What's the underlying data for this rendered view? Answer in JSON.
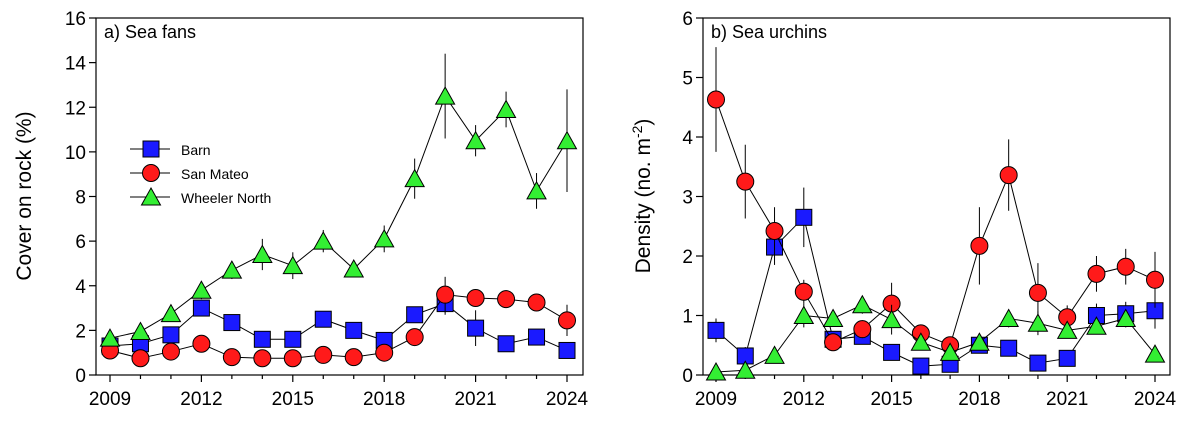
{
  "chart_data": [
    {
      "type": "line",
      "title": "a) Sea fans",
      "xlabel": "",
      "ylabel": "Cover on rock (%)",
      "xlim": [
        2009,
        2024
      ],
      "ylim": [
        0,
        16
      ],
      "xticks": [
        2009,
        2012,
        2015,
        2018,
        2021,
        2024
      ],
      "yticks": [
        0,
        2,
        4,
        6,
        8,
        10,
        12,
        14,
        16
      ],
      "grid": false,
      "legend": "upper-left",
      "x": [
        2009,
        2010,
        2011,
        2012,
        2013,
        2014,
        2015,
        2016,
        2017,
        2018,
        2019,
        2020,
        2021,
        2022,
        2023,
        2024
      ],
      "series": [
        {
          "name": "Barn",
          "marker": "square",
          "color": "#1a1aff",
          "values": [
            1.3,
            1.4,
            1.8,
            3.0,
            2.35,
            1.6,
            1.6,
            2.5,
            2.0,
            1.55,
            2.7,
            3.2,
            2.1,
            1.4,
            1.7,
            1.1
          ],
          "errors": [
            0.2,
            0.2,
            0.3,
            0.35,
            0.3,
            0.2,
            0.2,
            0.3,
            0.3,
            0.2,
            0.3,
            0.5,
            0.8,
            0.2,
            0.2,
            0.2
          ]
        },
        {
          "name": "San Mateo",
          "marker": "circle",
          "color": "#ff1a1a",
          "values": [
            1.1,
            0.75,
            1.05,
            1.4,
            0.8,
            0.75,
            0.75,
            0.9,
            0.8,
            1.0,
            1.7,
            3.6,
            3.45,
            3.4,
            3.25,
            2.45
          ],
          "errors": [
            0.15,
            0.1,
            0.15,
            0.15,
            0.1,
            0.1,
            0.1,
            0.1,
            0.1,
            0.15,
            0.2,
            0.8,
            0.3,
            0.4,
            0.3,
            0.7
          ]
        },
        {
          "name": "Wheeler North",
          "marker": "triangle",
          "color": "#33ee33",
          "values": [
            1.65,
            1.95,
            2.75,
            3.8,
            4.7,
            5.4,
            4.9,
            6.0,
            4.75,
            6.1,
            8.8,
            12.5,
            10.5,
            11.9,
            8.25,
            10.5
          ],
          "errors": [
            0.2,
            0.2,
            0.3,
            0.4,
            0.4,
            0.7,
            0.6,
            0.5,
            0.3,
            0.6,
            0.9,
            1.9,
            0.7,
            0.8,
            0.8,
            2.3
          ]
        }
      ]
    },
    {
      "type": "line",
      "title": "b) Sea urchins",
      "xlabel": "",
      "ylabel_main": "Density (no. m",
      "ylabel_sup": "-2",
      "ylabel_end": ")",
      "xlim": [
        2009,
        2024
      ],
      "ylim": [
        0,
        6
      ],
      "xticks": [
        2009,
        2012,
        2015,
        2018,
        2021,
        2024
      ],
      "yticks": [
        0,
        1,
        2,
        3,
        4,
        5,
        6
      ],
      "grid": false,
      "x": [
        2009,
        2010,
        2011,
        2012,
        2013,
        2014,
        2015,
        2016,
        2017,
        2018,
        2019,
        2020,
        2021,
        2022,
        2023,
        2024
      ],
      "series": [
        {
          "name": "Barn",
          "marker": "square",
          "color": "#1a1aff",
          "values": [
            0.75,
            0.32,
            2.15,
            2.65,
            0.6,
            0.65,
            0.38,
            0.15,
            0.18,
            0.5,
            0.45,
            0.2,
            0.28,
            1.0,
            1.03,
            1.08
          ],
          "errors": [
            0.2,
            0.15,
            0.3,
            0.5,
            0.1,
            0.1,
            0.1,
            0.05,
            0.05,
            0.1,
            0.1,
            0.05,
            0.05,
            0.2,
            0.2,
            0.3
          ]
        },
        {
          "name": "San Mateo",
          "marker": "circle",
          "color": "#ff1a1a",
          "values": [
            4.63,
            3.25,
            2.42,
            1.4,
            0.55,
            0.77,
            1.2,
            0.7,
            0.5,
            2.17,
            3.36,
            1.38,
            0.97,
            1.7,
            1.82,
            1.6
          ],
          "errors": [
            0.88,
            0.62,
            0.4,
            0.2,
            0.1,
            0.15,
            0.35,
            0.15,
            0.1,
            0.65,
            0.6,
            0.5,
            0.2,
            0.3,
            0.3,
            0.47
          ]
        },
        {
          "name": "Wheeler North",
          "marker": "triangle",
          "color": "#33ee33",
          "values": [
            0.05,
            0.08,
            0.33,
            1.0,
            0.95,
            1.18,
            0.93,
            0.55,
            0.38,
            0.55,
            0.95,
            0.87,
            0.75,
            0.82,
            0.95,
            0.35
          ],
          "errors": [
            0.02,
            0.02,
            0.05,
            0.2,
            0.1,
            0.15,
            0.25,
            0.1,
            0.05,
            0.1,
            0.15,
            0.2,
            0.1,
            0.1,
            0.15,
            0.05
          ]
        }
      ]
    }
  ]
}
